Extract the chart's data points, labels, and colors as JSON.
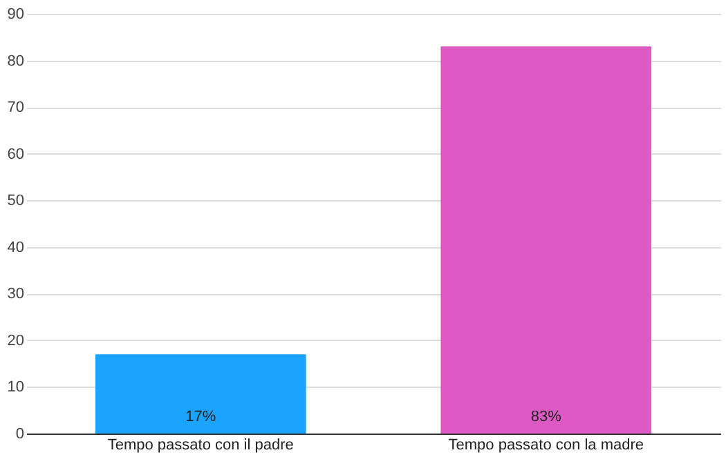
{
  "chart_data": {
    "type": "bar",
    "categories": [
      "Tempo passato con il padre",
      "Tempo passato con la madre"
    ],
    "values": [
      17,
      83
    ],
    "colors": [
      "#1aa3ff",
      "#dd5ac4"
    ],
    "value_labels": [
      "17%",
      "83%"
    ],
    "ylim": [
      0,
      90
    ],
    "yticks": [
      0,
      10,
      20,
      30,
      40,
      50,
      60,
      70,
      80,
      90
    ],
    "grid": "y"
  }
}
